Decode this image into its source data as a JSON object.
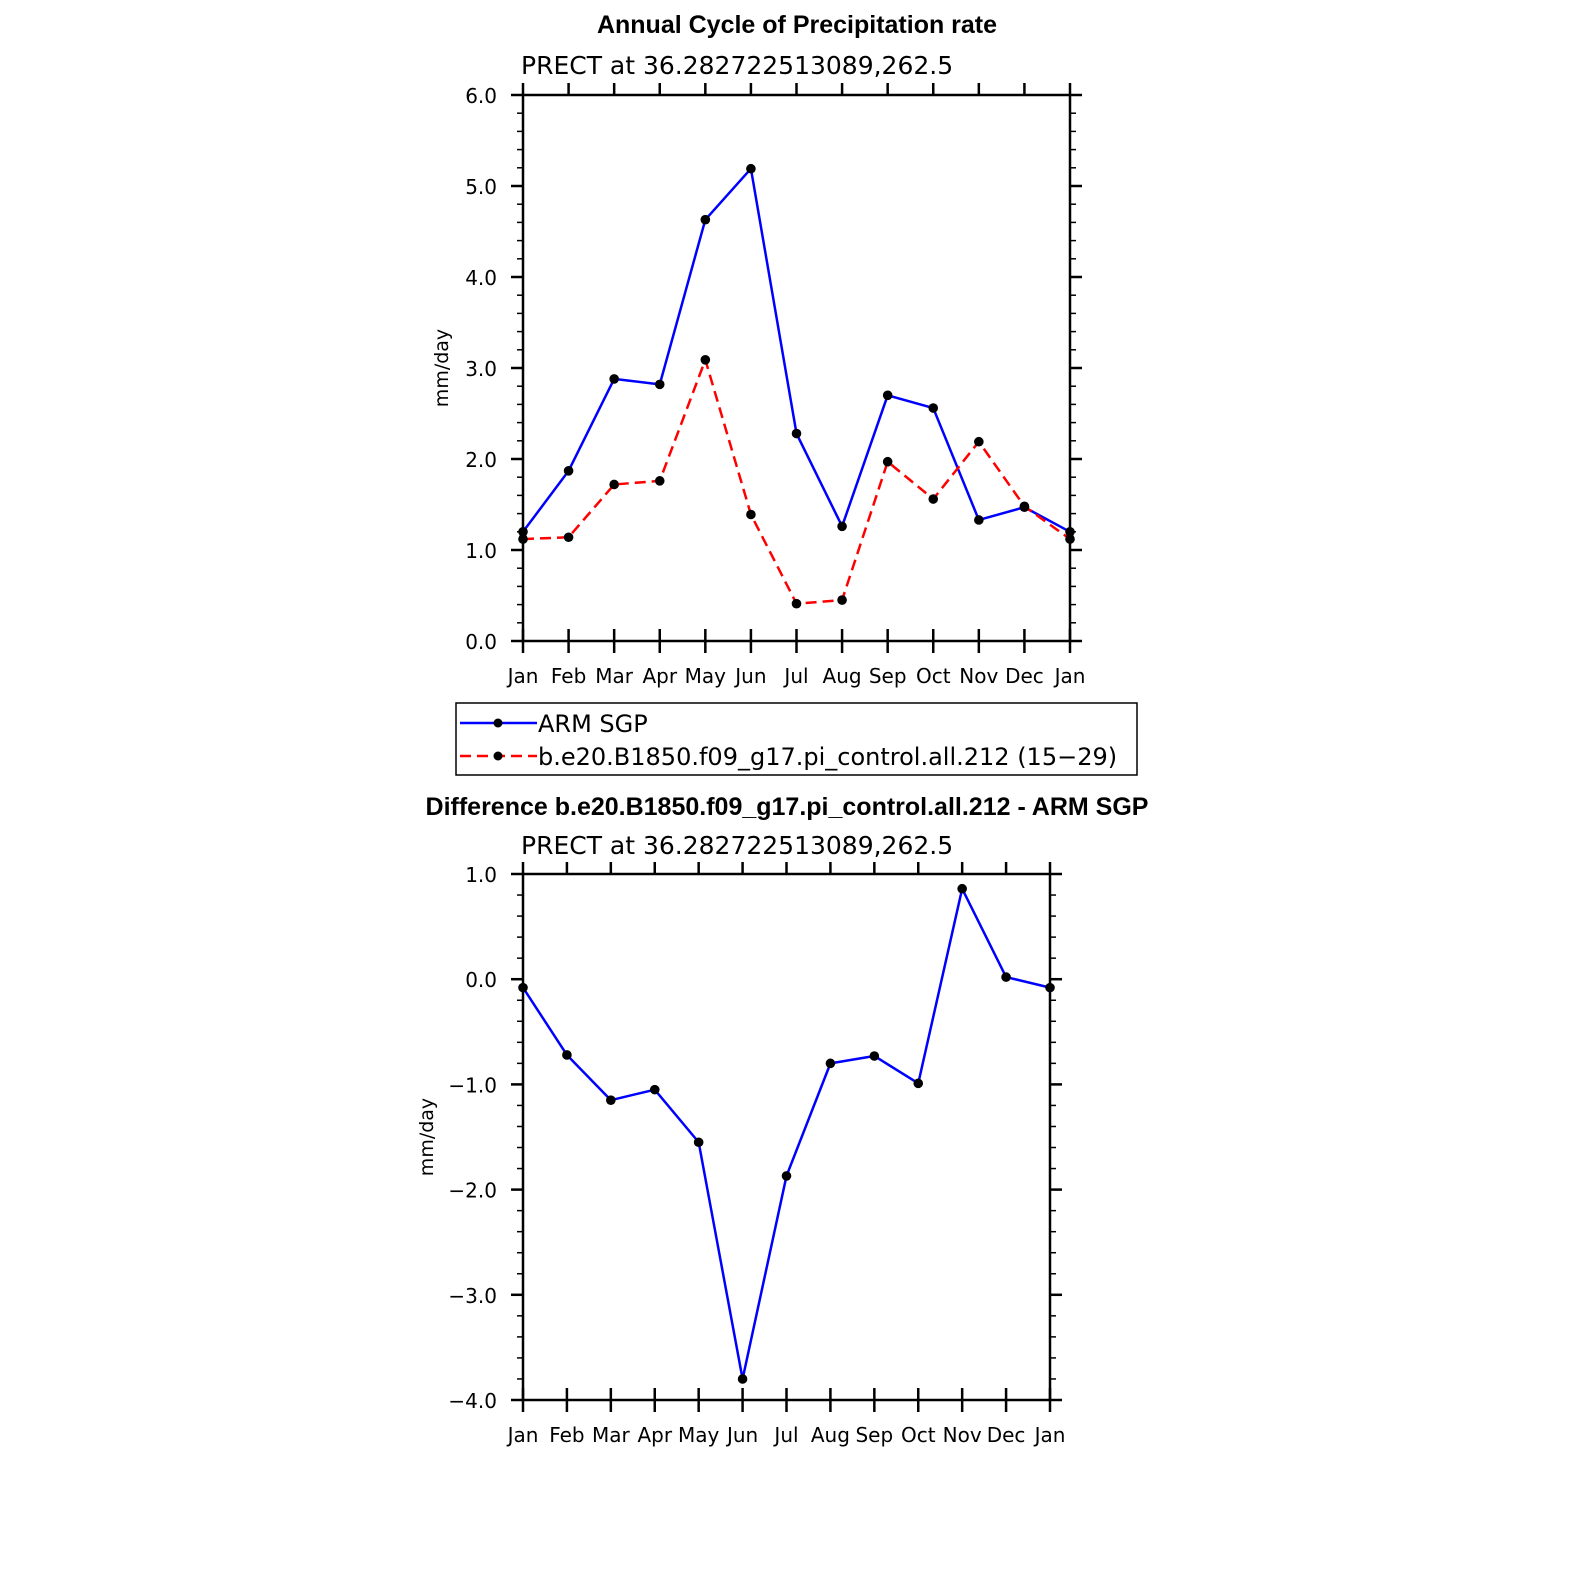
{
  "chart_data": [
    {
      "type": "line",
      "title": "Annual Cycle of Precipitation rate",
      "subtitle": "PRECT at 36.282722513089,262.5",
      "xlabel": "",
      "ylabel": "mm/day",
      "categories": [
        "Jan",
        "Feb",
        "Mar",
        "Apr",
        "May",
        "Jun",
        "Jul",
        "Aug",
        "Sep",
        "Oct",
        "Nov",
        "Dec",
        "Jan"
      ],
      "ylim": [
        0,
        6
      ],
      "yticks": [
        "0.0",
        "1.0",
        "2.0",
        "3.0",
        "4.0",
        "5.0",
        "6.0"
      ],
      "series": [
        {
          "name": "ARM SGP",
          "color": "#0000ff",
          "dash": "solid",
          "values": [
            1.2,
            1.87,
            2.88,
            2.82,
            4.63,
            5.19,
            2.28,
            1.26,
            2.7,
            2.56,
            1.33,
            1.47,
            1.2
          ]
        },
        {
          "name": "b.e20.B1850.f09_g17.pi_control.all.212 (15−29)",
          "color": "#ff0000",
          "dash": "dashed",
          "values": [
            1.12,
            1.14,
            1.72,
            1.76,
            3.09,
            1.39,
            0.41,
            0.45,
            1.97,
            1.56,
            2.19,
            1.48,
            1.12
          ]
        }
      ],
      "legend": "below"
    },
    {
      "type": "line",
      "title": "Difference b.e20.B1850.f09_g17.pi_control.all.212 - ARM SGP",
      "subtitle": "PRECT at 36.282722513089,262.5",
      "xlabel": "",
      "ylabel": "mm/day",
      "categories": [
        "Jan",
        "Feb",
        "Mar",
        "Apr",
        "May",
        "Jun",
        "Jul",
        "Aug",
        "Sep",
        "Oct",
        "Nov",
        "Dec",
        "Jan"
      ],
      "ylim": [
        -4,
        1
      ],
      "yticks": [
        "−4.0",
        "−3.0",
        "−2.0",
        "−1.0",
        "0.0",
        "1.0"
      ],
      "series": [
        {
          "name": "",
          "color": "#0000ff",
          "dash": "solid",
          "values": [
            -0.08,
            -0.72,
            -1.15,
            -1.05,
            -1.55,
            -3.8,
            -1.87,
            -0.8,
            -0.73,
            -0.99,
            0.86,
            0.02,
            -0.08
          ]
        }
      ]
    }
  ]
}
